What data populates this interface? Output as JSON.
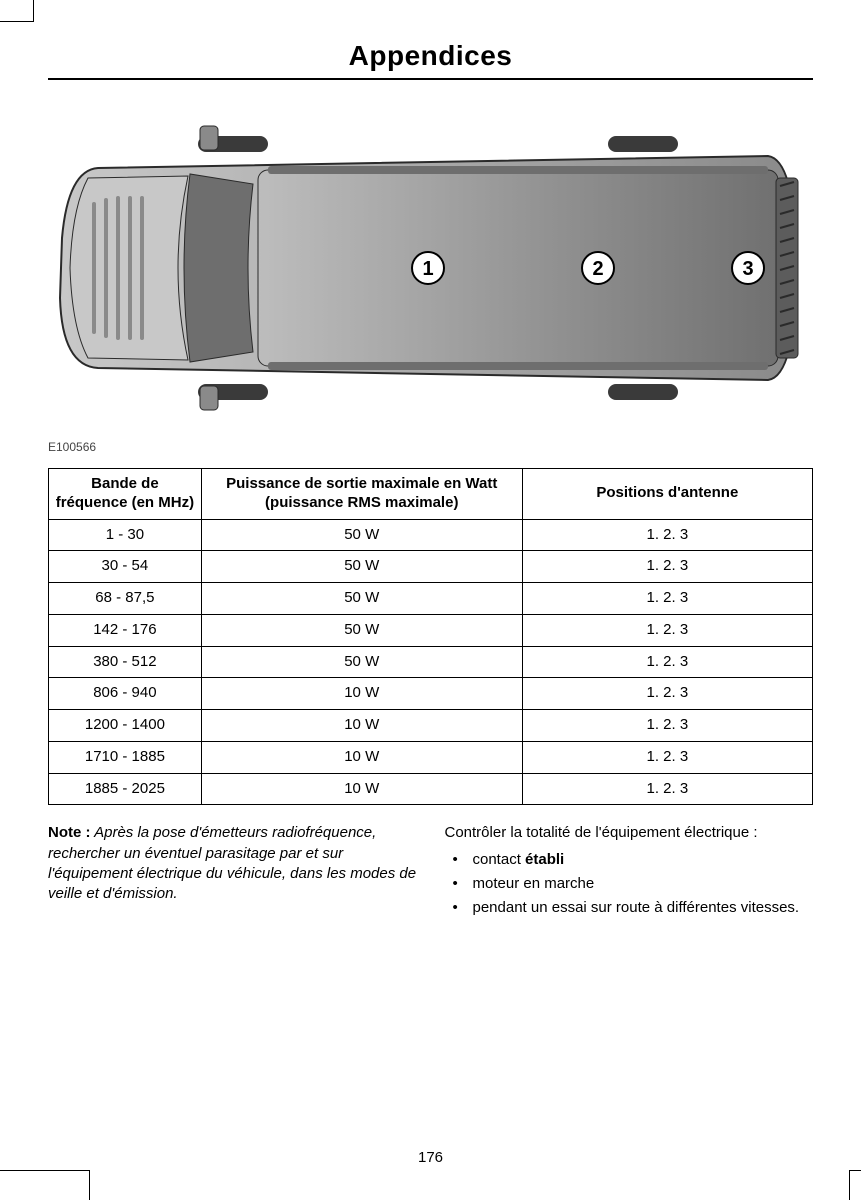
{
  "page": {
    "title": "Appendices",
    "number": "176"
  },
  "diagram": {
    "caption": "E100566",
    "callouts": [
      "1",
      "2",
      "3"
    ],
    "colors": {
      "body_light": "#c8c8c8",
      "body_dark": "#8a8a8a",
      "roof_light": "#bdbdbd",
      "roof_dark": "#707070",
      "glass": "#6e6e6e",
      "tire": "#3a3a3a",
      "outline": "#2a2a2a",
      "rear_grate": "#5c5c5c"
    }
  },
  "table": {
    "headers": {
      "band": "Bande de fréquence (en MHz)",
      "power": "Puissance de sortie maximale en Watt (puissance RMS maximale)",
      "positions": "Positions d'antenne"
    },
    "rows": [
      {
        "band": "1 - 30",
        "power": "50 W",
        "positions": "1. 2. 3"
      },
      {
        "band": "30 - 54",
        "power": "50 W",
        "positions": "1. 2. 3"
      },
      {
        "band": "68 - 87,5",
        "power": "50 W",
        "positions": "1. 2. 3"
      },
      {
        "band": "142 - 176",
        "power": "50 W",
        "positions": "1. 2. 3"
      },
      {
        "band": "380 - 512",
        "power": "50 W",
        "positions": "1. 2. 3"
      },
      {
        "band": "806 - 940",
        "power": "10 W",
        "positions": "1. 2. 3"
      },
      {
        "band": "1200 - 1400",
        "power": "10 W",
        "positions": "1. 2. 3"
      },
      {
        "band": "1710 - 1885",
        "power": "10 W",
        "positions": "1. 2. 3"
      },
      {
        "band": "1885 - 2025",
        "power": "10 W",
        "positions": "1. 2. 3"
      }
    ]
  },
  "notes": {
    "left": {
      "label": "Note :",
      "text": " Après la pose d'émetteurs radiofréquence, rechercher un éventuel parasitage par et sur l'équipement électrique du véhicule, dans les modes de veille et d'émission."
    },
    "right": {
      "intro": "Contrôler la totalité de l'équipement électrique :",
      "items": [
        {
          "pre": "contact ",
          "bold": "établi",
          "post": ""
        },
        {
          "pre": "moteur en marche",
          "bold": "",
          "post": ""
        },
        {
          "pre": "pendant un essai sur route à différentes vitesses.",
          "bold": "",
          "post": ""
        }
      ]
    }
  }
}
